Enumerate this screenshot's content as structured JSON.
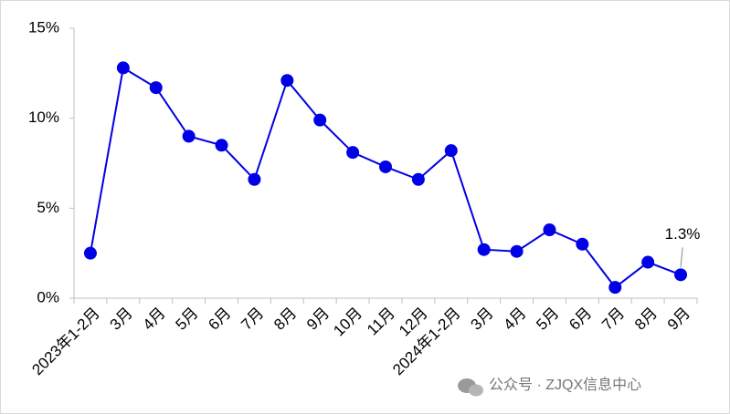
{
  "chart_data": {
    "type": "line",
    "categories": [
      "2023年1-2月",
      "3月",
      "4月",
      "5月",
      "6月",
      "7月",
      "8月",
      "9月",
      "10月",
      "11月",
      "12月",
      "2024年1-2月",
      "3月",
      "4月",
      "5月",
      "6月",
      "7月",
      "8月",
      "9月"
    ],
    "series": [
      {
        "color": "#0000e6",
        "values": [
          2.5,
          12.8,
          11.7,
          9.0,
          8.5,
          6.6,
          12.1,
          9.9,
          8.1,
          7.3,
          6.6,
          8.2,
          2.7,
          2.6,
          3.8,
          3.0,
          0.6,
          2.0,
          1.3
        ],
        "value_labels": [
          null,
          null,
          null,
          null,
          null,
          null,
          null,
          null,
          null,
          null,
          null,
          null,
          null,
          null,
          null,
          null,
          null,
          null,
          "1.3%"
        ]
      }
    ],
    "ylim": [
      0,
      15
    ],
    "yticks": [
      {
        "value": 0,
        "label": "0%"
      },
      {
        "value": 5,
        "label": "5%"
      },
      {
        "value": 10,
        "label": "10%"
      },
      {
        "value": 15,
        "label": "15%"
      }
    ],
    "grid": false,
    "watermark": "公众号 · ZJQX信息中心"
  }
}
